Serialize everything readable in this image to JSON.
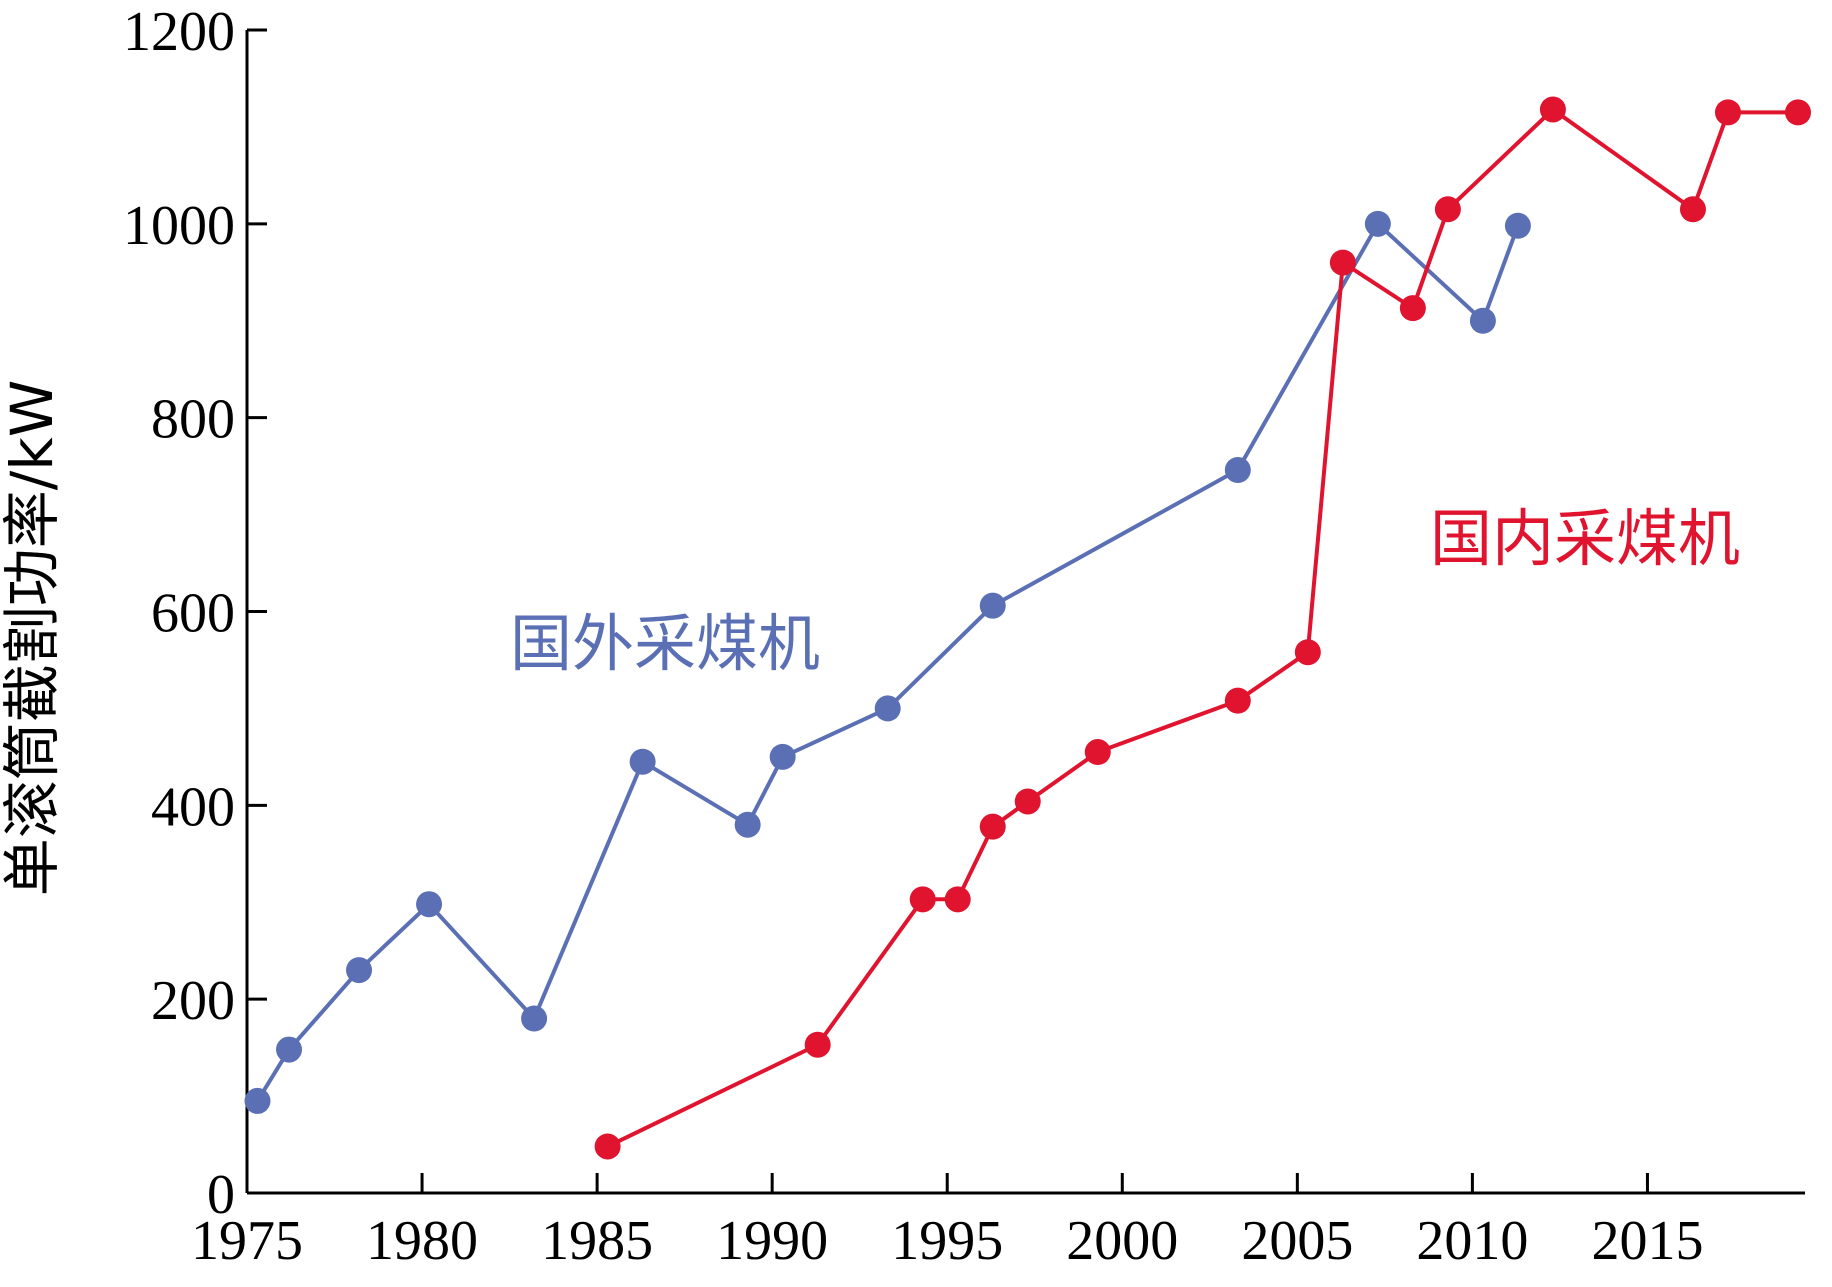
{
  "chart_data": {
    "type": "line",
    "title": "",
    "xlabel": "",
    "ylabel": "单滚筒截割功率/kW",
    "xlim": [
      1975,
      2019.5
    ],
    "ylim": [
      0,
      1200
    ],
    "xticks": [
      1975,
      1980,
      1985,
      1990,
      1995,
      2000,
      2005,
      2010,
      2015
    ],
    "yticks": [
      0,
      200,
      400,
      600,
      800,
      1000,
      1200
    ],
    "grid": false,
    "legend": "none",
    "series": [
      {
        "name": "国外采煤机",
        "color": "#5b6fb5",
        "label_position": "upper-left-middle",
        "points": [
          [
            1975.3,
            95
          ],
          [
            1976.2,
            148
          ],
          [
            1978.2,
            230
          ],
          [
            1980.2,
            298
          ],
          [
            1983.2,
            180
          ],
          [
            1986.3,
            445
          ],
          [
            1989.3,
            380
          ],
          [
            1990.3,
            450
          ],
          [
            1993.3,
            500
          ],
          [
            1996.3,
            606
          ],
          [
            2003.3,
            746
          ],
          [
            2007.3,
            1000
          ],
          [
            2010.3,
            900
          ],
          [
            2011.3,
            998
          ]
        ]
      },
      {
        "name": "国内采煤机",
        "color": "#e0142f",
        "label_position": "right-middle",
        "points": [
          [
            1985.3,
            48
          ],
          [
            1991.3,
            153
          ],
          [
            1994.3,
            303
          ],
          [
            1995.3,
            303
          ],
          [
            1996.3,
            378
          ],
          [
            1997.3,
            404
          ],
          [
            1999.3,
            455
          ],
          [
            2003.3,
            508
          ],
          [
            2005.3,
            558
          ],
          [
            2006.3,
            960
          ],
          [
            2008.3,
            913
          ],
          [
            2009.3,
            1015
          ],
          [
            2012.3,
            1118
          ],
          [
            2016.3,
            1015
          ],
          [
            2017.3,
            1115
          ],
          [
            2019.3,
            1115
          ]
        ]
      }
    ]
  }
}
